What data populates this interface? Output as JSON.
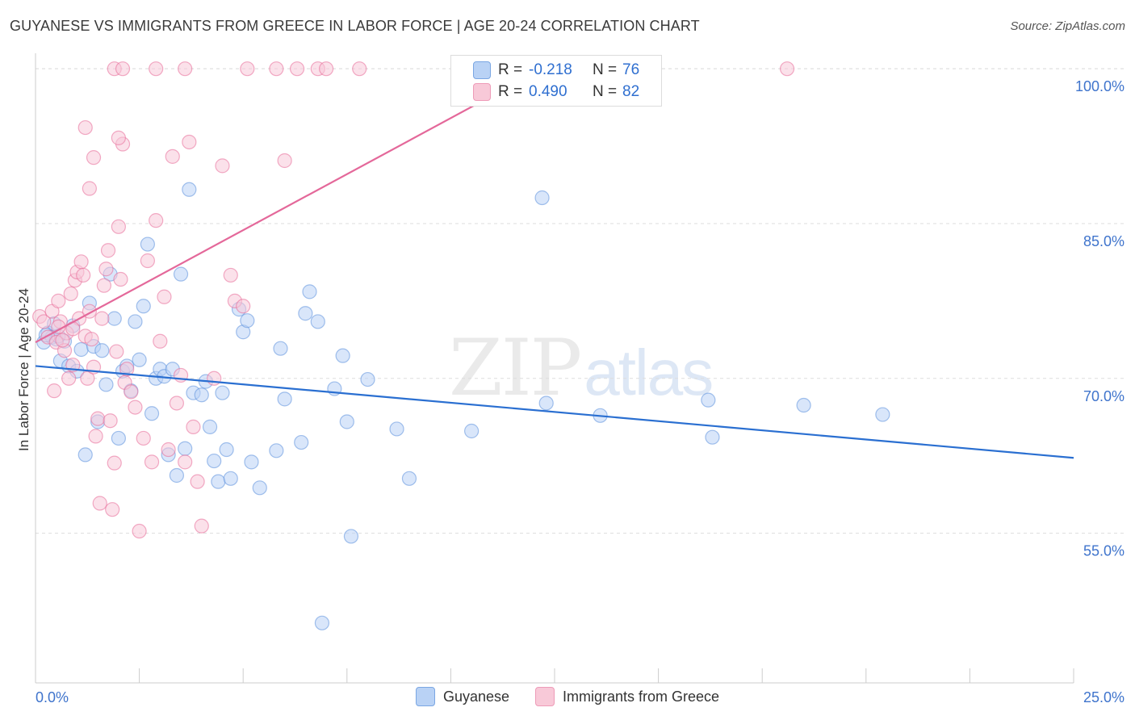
{
  "header": {
    "title": "GUYANESE VS IMMIGRANTS FROM GREECE IN LABOR FORCE | AGE 20-24 CORRELATION CHART",
    "source": "Source: ZipAtlas.com"
  },
  "watermark": {
    "zip": "ZIP",
    "atlas": "atlas"
  },
  "stats_legend": {
    "rows": [
      {
        "r_label": "R =",
        "r_value": "-0.218",
        "n_label": "N =",
        "n_value": "76",
        "color": "#b9d2f5"
      },
      {
        "r_label": "R =",
        "r_value": "0.490",
        "n_label": "N =",
        "n_value": "82",
        "color": "#f8c9d8"
      }
    ]
  },
  "chart_data": {
    "type": "scatter",
    "ylabel": "In Labor Force | Age 20-24",
    "x_tick_labels": [
      "0.0%",
      "25.0%"
    ],
    "y_tick_labels": [
      "55.0%",
      "70.0%",
      "85.0%",
      "100.0%"
    ],
    "y_ticks": [
      55,
      70,
      85,
      100
    ],
    "xlim": [
      0,
      25
    ],
    "ylim": [
      40.5,
      101.5
    ],
    "grid": true,
    "legend_placement": "bottom",
    "series": [
      {
        "name": "Guyanese",
        "color": "#5b8fdd",
        "fill": "#b9d2f5",
        "trend": {
          "x": [
            0,
            25
          ],
          "y": [
            71.2,
            62.3
          ]
        },
        "points": [
          [
            0.2,
            73.5
          ],
          [
            0.3,
            74.4
          ],
          [
            0.4,
            74.0
          ],
          [
            0.5,
            73.8
          ],
          [
            0.6,
            71.7
          ],
          [
            0.7,
            73.6
          ],
          [
            0.8,
            71.2
          ],
          [
            0.9,
            75.1
          ],
          [
            1.0,
            70.7
          ],
          [
            1.1,
            72.8
          ],
          [
            1.2,
            62.6
          ],
          [
            1.3,
            77.3
          ],
          [
            1.4,
            73.1
          ],
          [
            1.5,
            65.8
          ],
          [
            1.6,
            72.7
          ],
          [
            1.7,
            69.4
          ],
          [
            1.8,
            80.1
          ],
          [
            1.9,
            75.8
          ],
          [
            2.0,
            64.2
          ],
          [
            2.1,
            70.7
          ],
          [
            2.2,
            71.2
          ],
          [
            2.3,
            68.8
          ],
          [
            2.4,
            75.5
          ],
          [
            2.5,
            71.8
          ],
          [
            2.6,
            77.0
          ],
          [
            2.7,
            83.0
          ],
          [
            2.8,
            66.6
          ],
          [
            2.9,
            70.0
          ],
          [
            3.0,
            70.9
          ],
          [
            3.1,
            70.2
          ],
          [
            3.2,
            62.6
          ],
          [
            3.3,
            70.9
          ],
          [
            3.4,
            60.6
          ],
          [
            3.5,
            80.1
          ],
          [
            3.6,
            63.2
          ],
          [
            3.7,
            88.3
          ],
          [
            3.8,
            68.6
          ],
          [
            4.0,
            68.4
          ],
          [
            4.1,
            69.7
          ],
          [
            4.2,
            65.3
          ],
          [
            4.3,
            62.0
          ],
          [
            4.4,
            60.0
          ],
          [
            4.5,
            68.6
          ],
          [
            4.6,
            63.1
          ],
          [
            4.7,
            60.3
          ],
          [
            4.9,
            76.7
          ],
          [
            5.0,
            74.5
          ],
          [
            5.1,
            75.6
          ],
          [
            5.2,
            61.9
          ],
          [
            5.4,
            59.4
          ],
          [
            5.8,
            63.0
          ],
          [
            5.9,
            72.9
          ],
          [
            6.0,
            68.0
          ],
          [
            6.4,
            63.8
          ],
          [
            6.5,
            76.3
          ],
          [
            6.6,
            78.4
          ],
          [
            6.8,
            75.5
          ],
          [
            6.9,
            46.3
          ],
          [
            7.2,
            69.0
          ],
          [
            7.4,
            72.2
          ],
          [
            7.5,
            65.8
          ],
          [
            7.6,
            54.7
          ],
          [
            8.0,
            69.9
          ],
          [
            8.7,
            65.1
          ],
          [
            9.0,
            60.3
          ],
          [
            10.5,
            64.9
          ],
          [
            12.2,
            87.5
          ],
          [
            12.3,
            67.6
          ],
          [
            13.6,
            66.4
          ],
          [
            16.2,
            67.9
          ],
          [
            16.3,
            64.3
          ],
          [
            18.5,
            67.4
          ],
          [
            20.4,
            66.5
          ],
          [
            0.25,
            74.2
          ],
          [
            0.45,
            75.3
          ],
          [
            0.55,
            74.1
          ]
        ]
      },
      {
        "name": "Immigrants from Greece",
        "color": "#e86a98",
        "fill": "#f8c9d8",
        "trend": {
          "x": [
            0,
            12.2
          ],
          "y": [
            73.5,
            100.0
          ]
        },
        "points": [
          [
            0.1,
            76.0
          ],
          [
            0.2,
            75.5
          ],
          [
            0.3,
            74.0
          ],
          [
            0.4,
            76.5
          ],
          [
            0.45,
            68.8
          ],
          [
            0.5,
            73.5
          ],
          [
            0.55,
            77.5
          ],
          [
            0.6,
            75.5
          ],
          [
            0.7,
            72.7
          ],
          [
            0.75,
            74.4
          ],
          [
            0.8,
            70.0
          ],
          [
            0.85,
            78.2
          ],
          [
            0.9,
            71.3
          ],
          [
            0.95,
            79.5
          ],
          [
            1.0,
            80.3
          ],
          [
            1.05,
            75.8
          ],
          [
            1.1,
            81.3
          ],
          [
            1.15,
            80.0
          ],
          [
            1.2,
            74.1
          ],
          [
            1.25,
            70.0
          ],
          [
            1.3,
            76.5
          ],
          [
            1.35,
            73.8
          ],
          [
            1.4,
            71.1
          ],
          [
            1.45,
            64.4
          ],
          [
            1.5,
            66.1
          ],
          [
            1.55,
            57.9
          ],
          [
            1.6,
            75.8
          ],
          [
            1.65,
            79.0
          ],
          [
            1.7,
            80.6
          ],
          [
            1.75,
            82.4
          ],
          [
            1.8,
            65.9
          ],
          [
            1.85,
            57.3
          ],
          [
            1.9,
            61.8
          ],
          [
            1.95,
            72.6
          ],
          [
            2.0,
            84.7
          ],
          [
            2.05,
            79.6
          ],
          [
            2.1,
            92.7
          ],
          [
            2.15,
            69.6
          ],
          [
            2.2,
            70.9
          ],
          [
            2.3,
            68.7
          ],
          [
            2.4,
            67.2
          ],
          [
            2.5,
            55.2
          ],
          [
            2.6,
            64.2
          ],
          [
            2.7,
            81.4
          ],
          [
            2.8,
            61.9
          ],
          [
            2.9,
            85.3
          ],
          [
            3.0,
            73.6
          ],
          [
            3.1,
            77.9
          ],
          [
            3.2,
            63.1
          ],
          [
            3.3,
            91.5
          ],
          [
            3.4,
            67.6
          ],
          [
            3.5,
            70.3
          ],
          [
            3.6,
            61.9
          ],
          [
            3.7,
            92.9
          ],
          [
            3.8,
            65.3
          ],
          [
            3.9,
            60.0
          ],
          [
            4.0,
            55.7
          ],
          [
            4.3,
            70.0
          ],
          [
            4.5,
            90.6
          ],
          [
            4.7,
            80.0
          ],
          [
            4.8,
            77.5
          ],
          [
            5.0,
            77.0
          ],
          [
            1.9,
            100.0
          ],
          [
            2.0,
            93.3
          ],
          [
            2.1,
            100.0
          ],
          [
            2.9,
            100.0
          ],
          [
            3.6,
            100.0
          ],
          [
            5.1,
            100.0
          ],
          [
            5.8,
            100.0
          ],
          [
            6.0,
            91.1
          ],
          [
            6.3,
            100.0
          ],
          [
            6.8,
            100.0
          ],
          [
            7.0,
            100.0
          ],
          [
            7.8,
            100.0
          ],
          [
            10.2,
            100.0
          ],
          [
            18.1,
            100.0
          ],
          [
            0.55,
            75.0
          ],
          [
            0.65,
            73.7
          ],
          [
            0.9,
            74.8
          ],
          [
            1.2,
            94.3
          ],
          [
            1.3,
            88.4
          ],
          [
            1.4,
            91.4
          ]
        ]
      }
    ]
  }
}
